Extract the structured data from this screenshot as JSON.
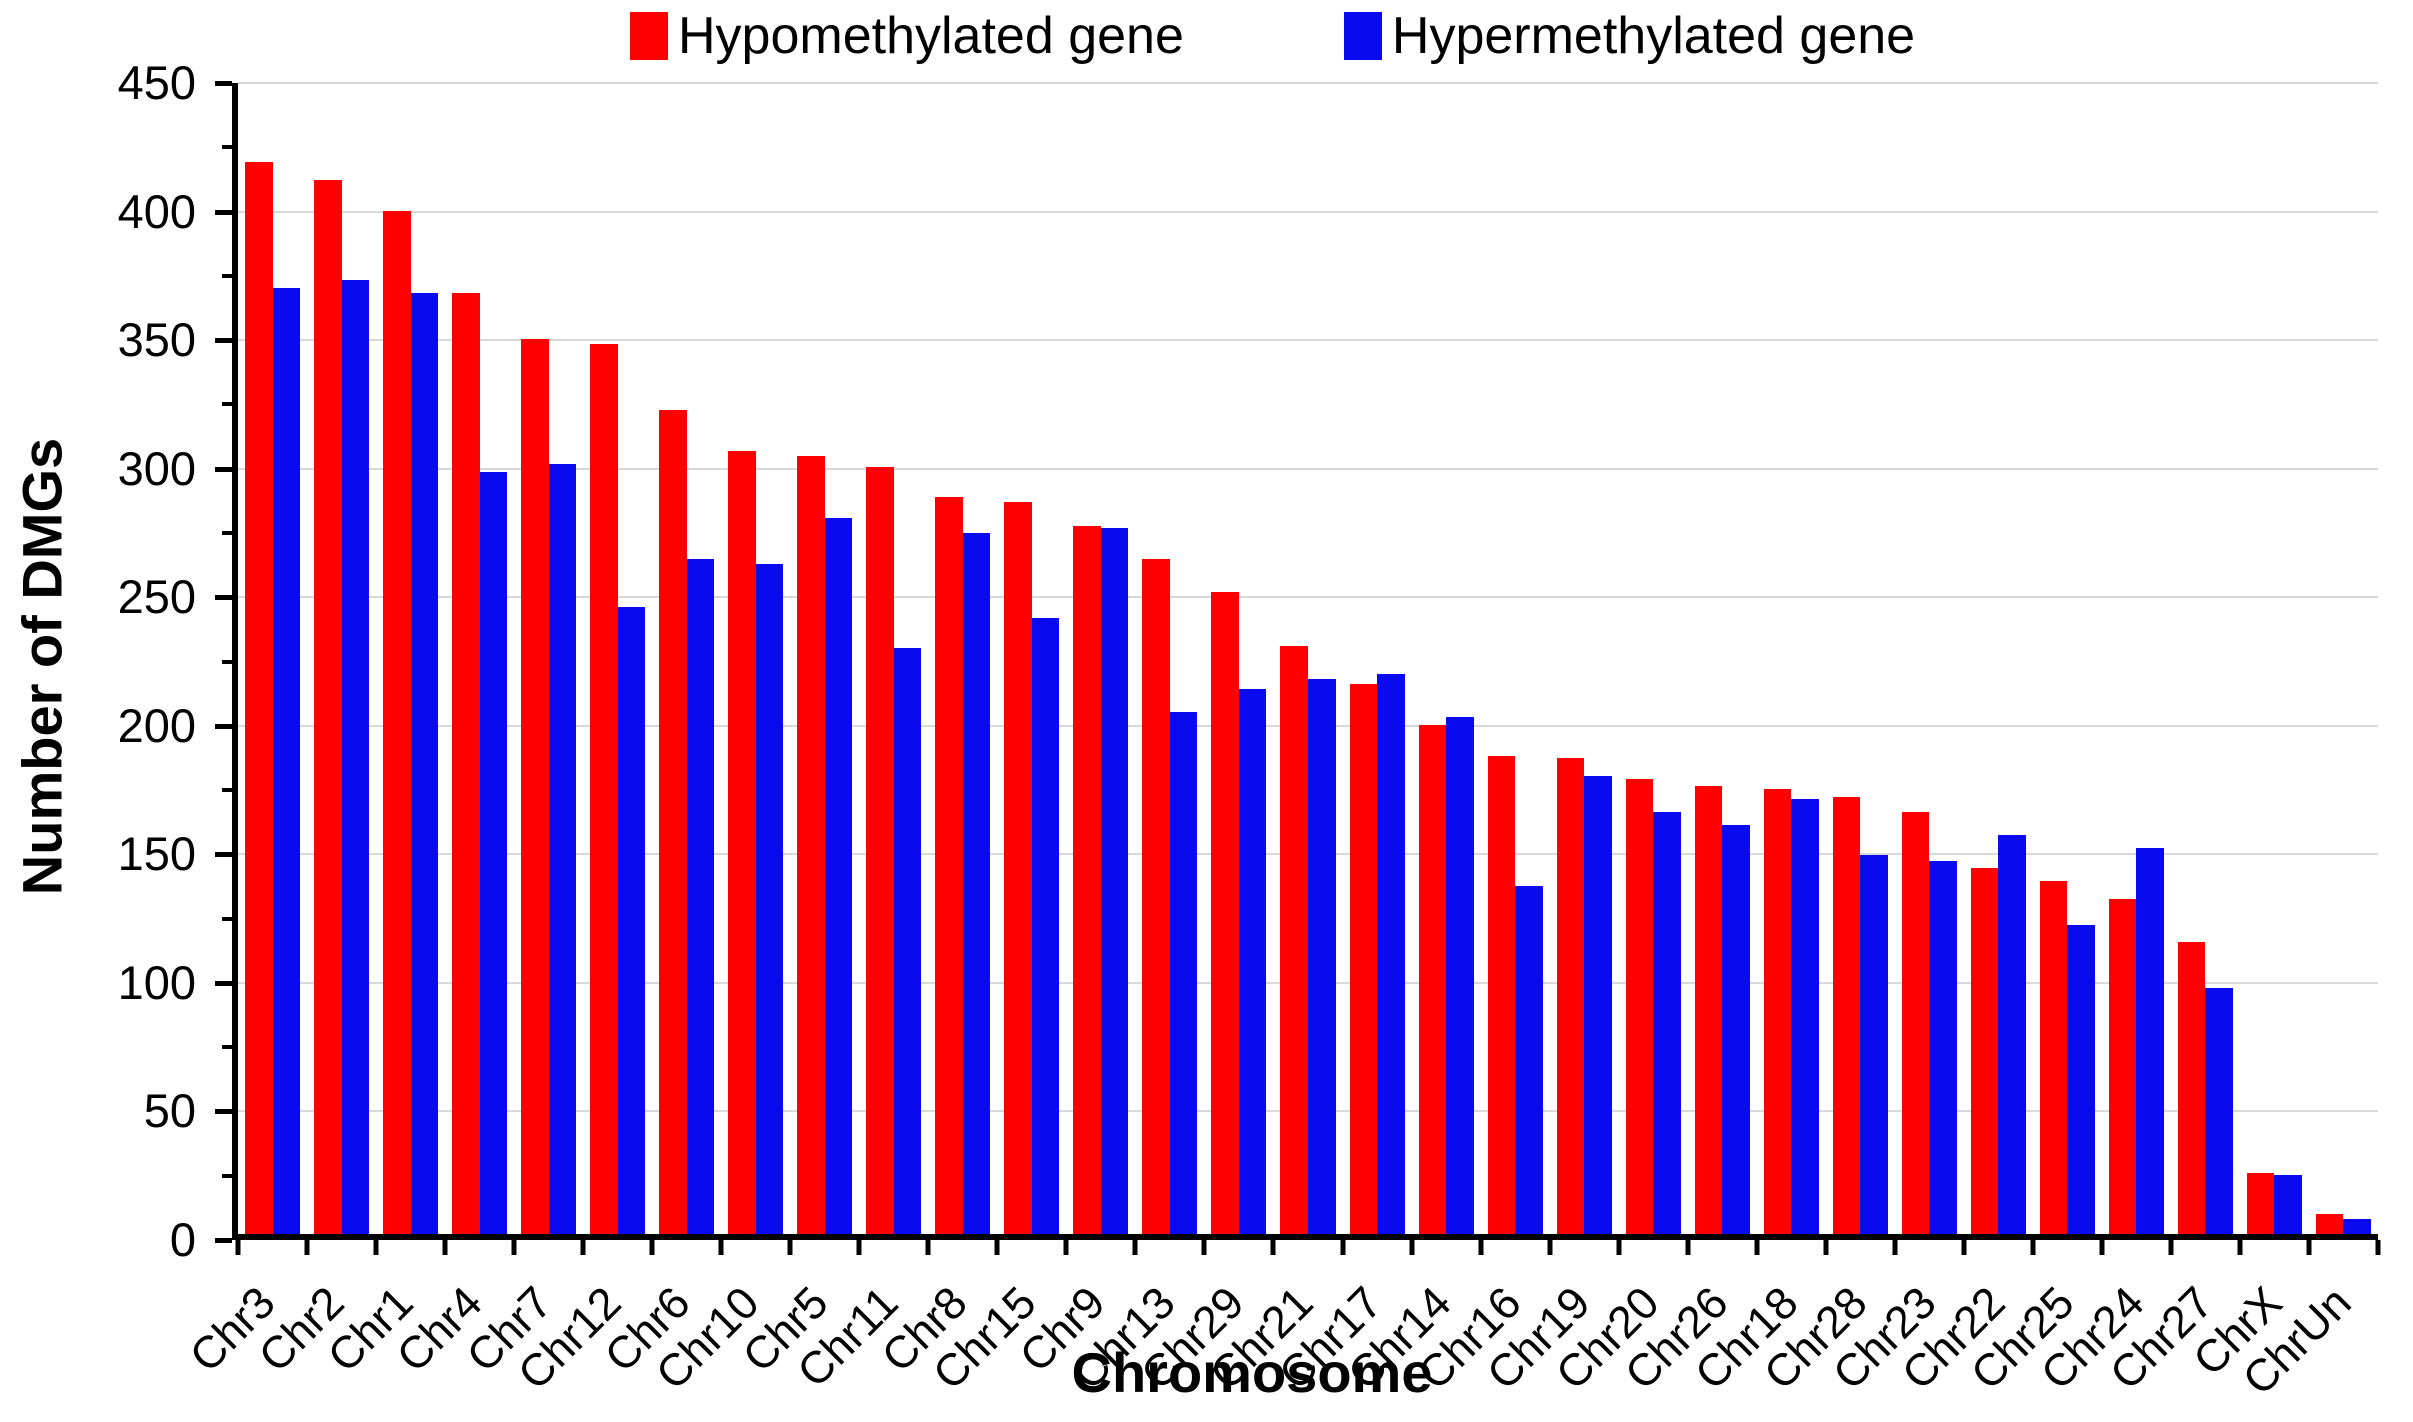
{
  "figure": {
    "background": "#FFFFFF"
  },
  "legend": {
    "items": [
      {
        "label": "Hypomethylated gene",
        "color": "#FF0000",
        "swatch": "red-square"
      },
      {
        "label": "Hypermethylated gene",
        "color": "#0A0AF0",
        "swatch": "blue-square"
      }
    ]
  },
  "axes": {
    "grid_color": "#D9D9D9",
    "axis_color": "#000000",
    "y_tick_labels": [
      "0",
      "50",
      "100",
      "150",
      "200",
      "250",
      "300",
      "350",
      "400",
      "450"
    ]
  },
  "chart_data": {
    "type": "bar",
    "title": "",
    "xlabel": "Chromosome",
    "ylabel": "Number of DMGs",
    "ylim": [
      0,
      450
    ],
    "ytick_step": 50,
    "ytick_minor_step": 25,
    "grid": "horizontal",
    "legend_position": "top-center",
    "categories": [
      "Chr3",
      "Chr2",
      "Chr1",
      "Chr4",
      "Chr7",
      "Chr12",
      "Chr6",
      "Chr10",
      "Chr5",
      "Chr11",
      "Chr8",
      "Chr15",
      "Chr9",
      "Chr13",
      "Chr29",
      "Chr21",
      "Chr17",
      "Chr14",
      "Chr16",
      "Chr19",
      "Chr20",
      "Chr26",
      "Chr18",
      "Chr28",
      "Chr23",
      "Chr22",
      "Chr25",
      "Chr24",
      "Chr27",
      "ChrX",
      "ChrUn"
    ],
    "series": [
      {
        "name": "Hypomethylated gene",
        "color": "#FF0000",
        "values": [
          419,
          412,
          400,
          368,
          350,
          348,
          322,
          306,
          304,
          300,
          288,
          286,
          277,
          264,
          251,
          230,
          215,
          199,
          187,
          186,
          178,
          175,
          174,
          171,
          165,
          143,
          138,
          131,
          114,
          24,
          8
        ]
      },
      {
        "name": "Hypermethylated gene",
        "color": "#0A0AF0",
        "values": [
          370,
          373,
          368,
          298,
          301,
          245,
          264,
          262,
          280,
          229,
          274,
          241,
          276,
          204,
          213,
          217,
          219,
          202,
          136,
          179,
          165,
          160,
          170,
          148,
          146,
          156,
          121,
          151,
          96,
          23,
          6
        ]
      }
    ]
  }
}
